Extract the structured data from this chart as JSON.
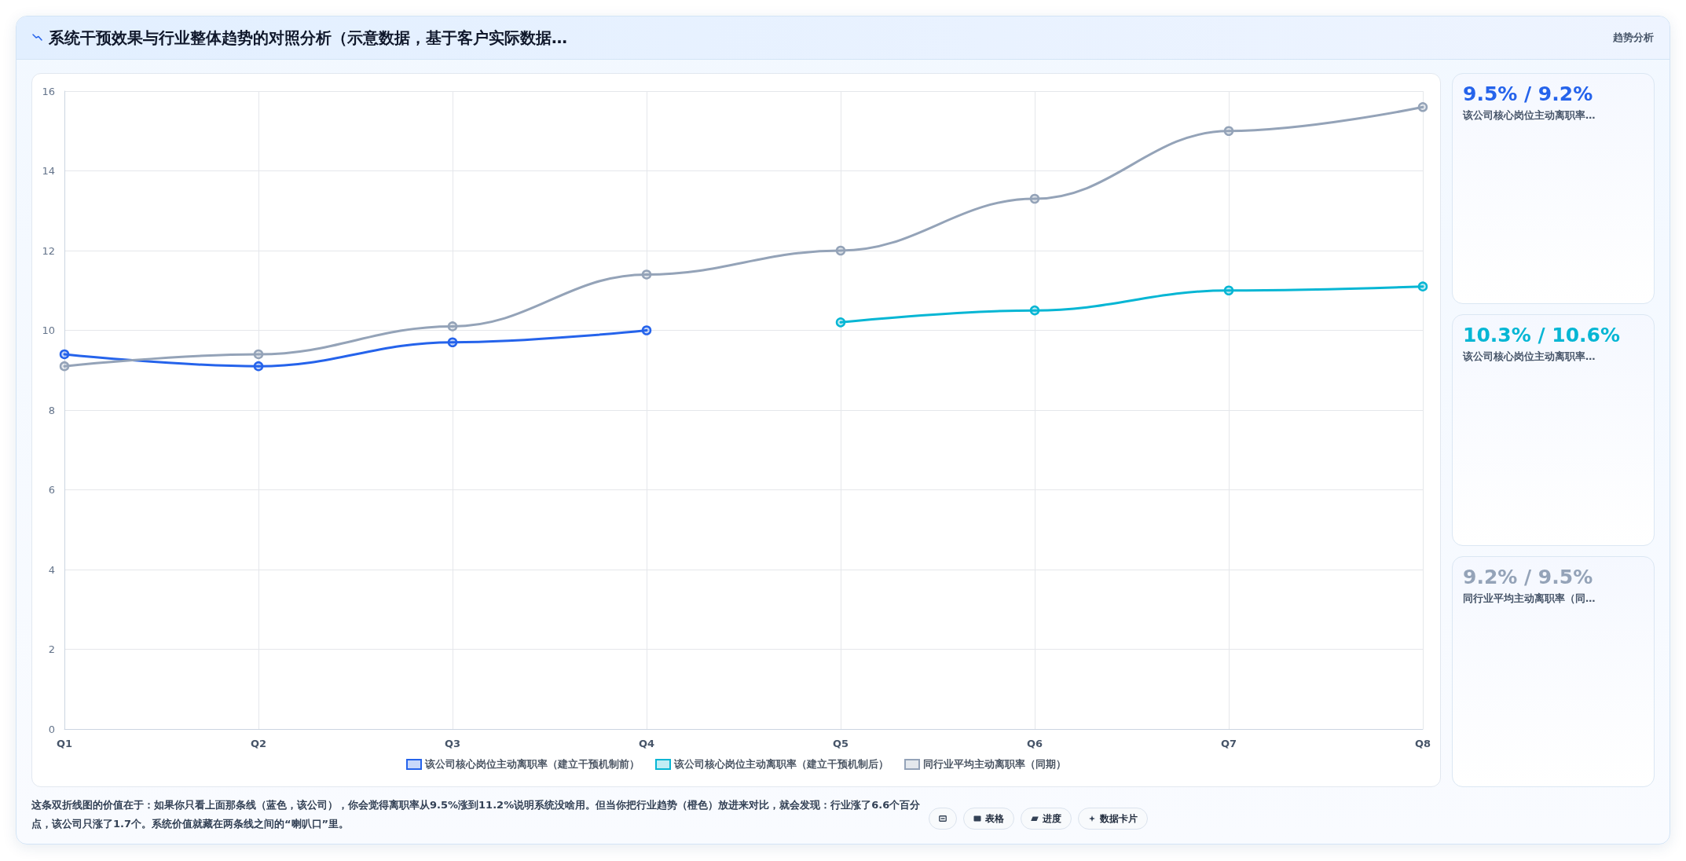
{
  "chart_data": [
    {
      "type": "line",
      "title": "系统干预效果与行业整体趋势的对照分析（示意数据，基于客户实际数据…",
      "categories": [
        "Q1",
        "Q2",
        "Q3",
        "Q4",
        "Q5",
        "Q6",
        "Q7",
        "Q8"
      ],
      "series": [
        {
          "name": "该公司核心岗位主动离职率（建立干预机制前）",
          "color": "#2563eb",
          "values": [
            9.4,
            9.1,
            9.7,
            10.0,
            null,
            null,
            null,
            null
          ]
        },
        {
          "name": "该公司核心岗位主动离职率（建立干预机制后）",
          "color": "#06b6d4",
          "values": [
            null,
            null,
            null,
            null,
            10.2,
            10.5,
            11.0,
            11.1
          ]
        },
        {
          "name": "同行业平均主动离职率（同期）",
          "color": "#94a3b8",
          "values": [
            9.1,
            9.4,
            10.1,
            11.4,
            12.0,
            13.3,
            15.0,
            15.6
          ]
        }
      ],
      "ylim": [
        0,
        16
      ],
      "yticks": [
        0,
        2,
        4,
        6,
        8,
        10,
        12,
        14,
        16
      ],
      "grid": true,
      "legend": "bottom",
      "marker": "circle",
      "line_style": "solid",
      "annotations": [
        "趋势分析",
        "这条双折线图的价值在于：如果你只看上面那条线（蓝色，该公司），你会觉得离职率从9.5%涨到11.2%说明系统没啥用。但当你把行业趋势（橙色）放进来对比，就会发现：行业涨了6.6个百分点，该公司只涨了1.7个。系统价值就藏在两条线之间的“喇叭口”里。",
        "表格",
        "进度",
        "数据卡片"
      ]
    },
    {
      "type": "other",
      "title": "9.5% / 9.2%",
      "subtitle": "该公司核心岗位主动离职率…",
      "color": "#2563eb"
    },
    {
      "type": "other",
      "title": "10.3% / 10.6%",
      "subtitle": "该公司核心岗位主动离职率…",
      "color": "#06b6d4"
    },
    {
      "type": "other",
      "title": "9.2% / 9.5%",
      "subtitle": "同行业平均主动离职率（同…",
      "color": "#94a3b8"
    }
  ]
}
